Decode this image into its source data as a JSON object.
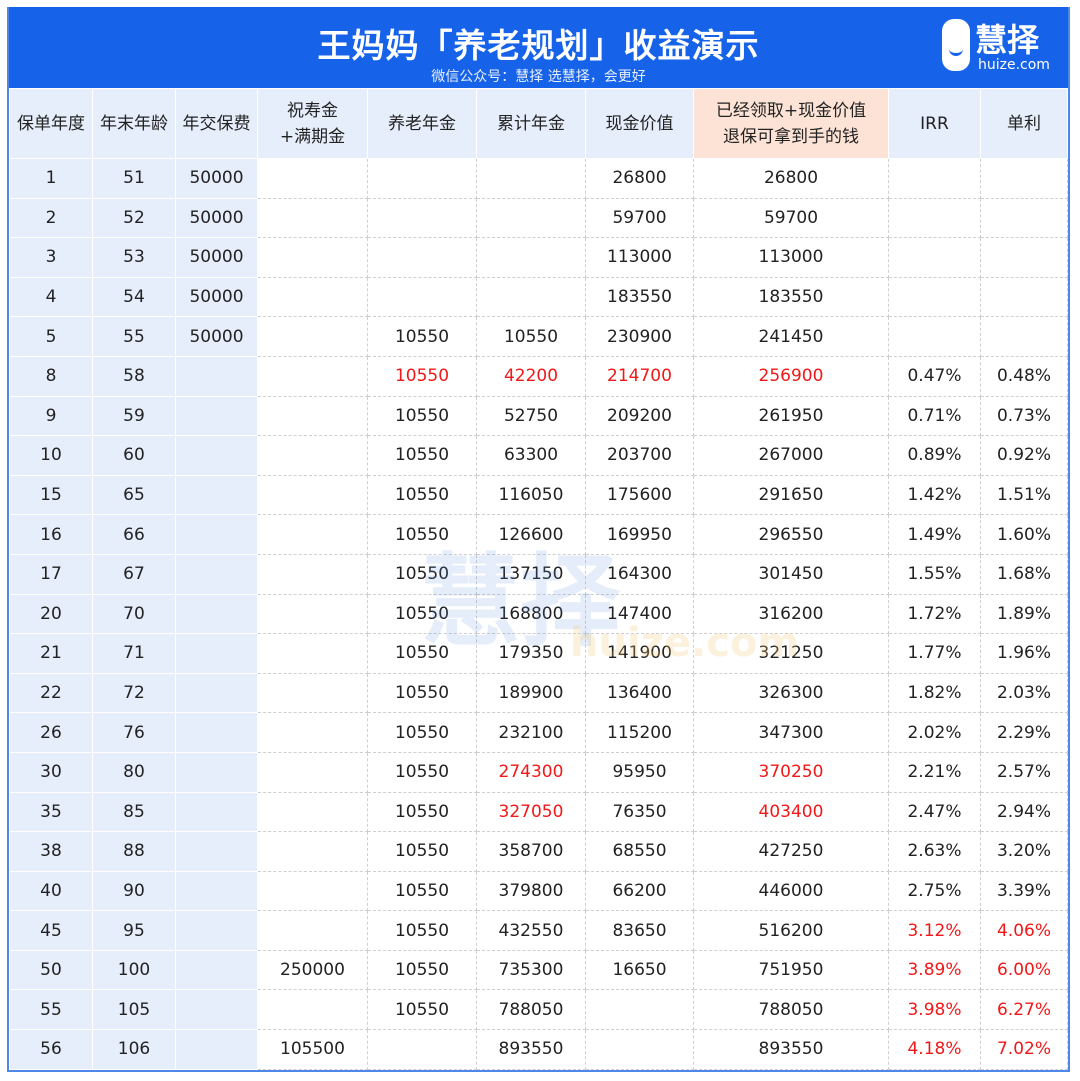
{
  "header": {
    "title": "王妈妈「养老规划」收益演示",
    "subtitle": "微信公众号：慧择  选慧择，会更好",
    "logo_brand": "慧择",
    "logo_url": "huize.com"
  },
  "colors": {
    "banner": "#1663ea",
    "highlight_header": "#fde3d6",
    "side_cells": "#e6eefc",
    "emphasis": "#f01818"
  },
  "columns": [
    "保单年度",
    "年末年龄",
    "年交保费",
    "祝寿金\n+满期金",
    "养老年金",
    "累计年金",
    "现金价值",
    "已经领取+现金价值\n退保可拿到手的钱",
    "IRR",
    "单利"
  ],
  "rows": [
    {
      "cells": [
        "1",
        "51",
        "50000",
        "",
        "",
        "",
        "26800",
        "26800",
        "",
        ""
      ],
      "red": []
    },
    {
      "cells": [
        "2",
        "52",
        "50000",
        "",
        "",
        "",
        "59700",
        "59700",
        "",
        ""
      ],
      "red": []
    },
    {
      "cells": [
        "3",
        "53",
        "50000",
        "",
        "",
        "",
        "113000",
        "113000",
        "",
        ""
      ],
      "red": []
    },
    {
      "cells": [
        "4",
        "54",
        "50000",
        "",
        "",
        "",
        "183550",
        "183550",
        "",
        ""
      ],
      "red": []
    },
    {
      "cells": [
        "5",
        "55",
        "50000",
        "",
        "10550",
        "10550",
        "230900",
        "241450",
        "",
        ""
      ],
      "red": []
    },
    {
      "cells": [
        "8",
        "58",
        "",
        "",
        "10550",
        "42200",
        "214700",
        "256900",
        "0.47%",
        "0.48%"
      ],
      "red": [
        4,
        5,
        6,
        7
      ]
    },
    {
      "cells": [
        "9",
        "59",
        "",
        "",
        "10550",
        "52750",
        "209200",
        "261950",
        "0.71%",
        "0.73%"
      ],
      "red": []
    },
    {
      "cells": [
        "10",
        "60",
        "",
        "",
        "10550",
        "63300",
        "203700",
        "267000",
        "0.89%",
        "0.92%"
      ],
      "red": []
    },
    {
      "cells": [
        "15",
        "65",
        "",
        "",
        "10550",
        "116050",
        "175600",
        "291650",
        "1.42%",
        "1.51%"
      ],
      "red": []
    },
    {
      "cells": [
        "16",
        "66",
        "",
        "",
        "10550",
        "126600",
        "169950",
        "296550",
        "1.49%",
        "1.60%"
      ],
      "red": []
    },
    {
      "cells": [
        "17",
        "67",
        "",
        "",
        "10550",
        "137150",
        "164300",
        "301450",
        "1.55%",
        "1.68%"
      ],
      "red": []
    },
    {
      "cells": [
        "20",
        "70",
        "",
        "",
        "10550",
        "168800",
        "147400",
        "316200",
        "1.72%",
        "1.89%"
      ],
      "red": []
    },
    {
      "cells": [
        "21",
        "71",
        "",
        "",
        "10550",
        "179350",
        "141900",
        "321250",
        "1.77%",
        "1.96%"
      ],
      "red": []
    },
    {
      "cells": [
        "22",
        "72",
        "",
        "",
        "10550",
        "189900",
        "136400",
        "326300",
        "1.82%",
        "2.03%"
      ],
      "red": []
    },
    {
      "cells": [
        "26",
        "76",
        "",
        "",
        "10550",
        "232100",
        "115200",
        "347300",
        "2.02%",
        "2.29%"
      ],
      "red": []
    },
    {
      "cells": [
        "30",
        "80",
        "",
        "",
        "10550",
        "274300",
        "95950",
        "370250",
        "2.21%",
        "2.57%"
      ],
      "red": [
        5,
        7
      ]
    },
    {
      "cells": [
        "35",
        "85",
        "",
        "",
        "10550",
        "327050",
        "76350",
        "403400",
        "2.47%",
        "2.94%"
      ],
      "red": [
        5,
        7
      ]
    },
    {
      "cells": [
        "38",
        "88",
        "",
        "",
        "10550",
        "358700",
        "68550",
        "427250",
        "2.63%",
        "3.20%"
      ],
      "red": []
    },
    {
      "cells": [
        "40",
        "90",
        "",
        "",
        "10550",
        "379800",
        "66200",
        "446000",
        "2.75%",
        "3.39%"
      ],
      "red": []
    },
    {
      "cells": [
        "45",
        "95",
        "",
        "",
        "10550",
        "432550",
        "83650",
        "516200",
        "3.12%",
        "4.06%"
      ],
      "red": [
        8,
        9
      ]
    },
    {
      "cells": [
        "50",
        "100",
        "",
        "250000",
        "10550",
        "735300",
        "16650",
        "751950",
        "3.89%",
        "6.00%"
      ],
      "red": [
        8,
        9
      ]
    },
    {
      "cells": [
        "55",
        "105",
        "",
        "",
        "10550",
        "788050",
        "",
        "788050",
        "3.98%",
        "6.27%"
      ],
      "red": [
        8,
        9
      ]
    },
    {
      "cells": [
        "56",
        "106",
        "",
        "105500",
        "",
        "893550",
        "",
        "893550",
        "4.18%",
        "7.02%"
      ],
      "red": [
        8,
        9
      ]
    }
  ]
}
